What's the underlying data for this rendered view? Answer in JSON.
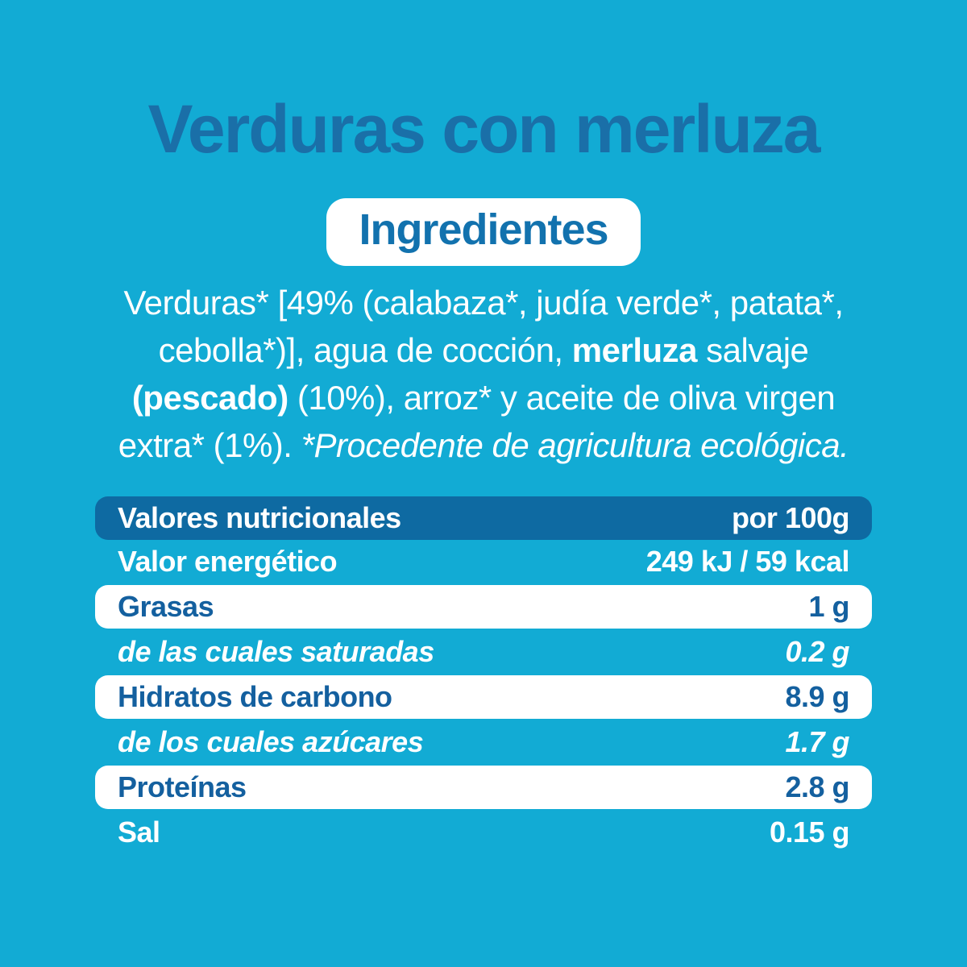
{
  "colors": {
    "background": "#12abd4",
    "title_text": "#1a6fa8",
    "pill_background": "#ffffff",
    "pill_text": "#1272ae",
    "table_header_background": "#0e6aa2",
    "table_white_row_text": "#14609f",
    "body_text": "#ffffff"
  },
  "title": "Verduras con merluza",
  "ingredients": {
    "heading": "Ingredientes",
    "line1": "Verduras* [49% (calabaza*, judía verde*, patata*,",
    "line2a": "cebolla*)], agua de cocción, ",
    "line2b": "merluza",
    "line2c": " salvaje",
    "line3a": "(pescado)",
    "line3b": " (10%), arroz* y aceite de oliva virgen",
    "line4a": "extra* (1%). ",
    "line4b": "*Procedente de agricultura ecológica."
  },
  "nutrition": {
    "header": {
      "label": "Valores nutricionales",
      "value": "por 100g"
    },
    "rows": [
      {
        "label": "Valor energético",
        "value": "249 kJ / 59 kcal"
      },
      {
        "label": "Grasas",
        "value": "1 g"
      },
      {
        "label": "de las cuales saturadas",
        "value": "0.2 g"
      },
      {
        "label": "Hidratos de carbono",
        "value": "8.9 g"
      },
      {
        "label": "de los cuales azúcares",
        "value": "1.7 g"
      },
      {
        "label": "Proteínas",
        "value": "2.8 g"
      },
      {
        "label": "Sal",
        "value": "0.15 g"
      }
    ]
  }
}
